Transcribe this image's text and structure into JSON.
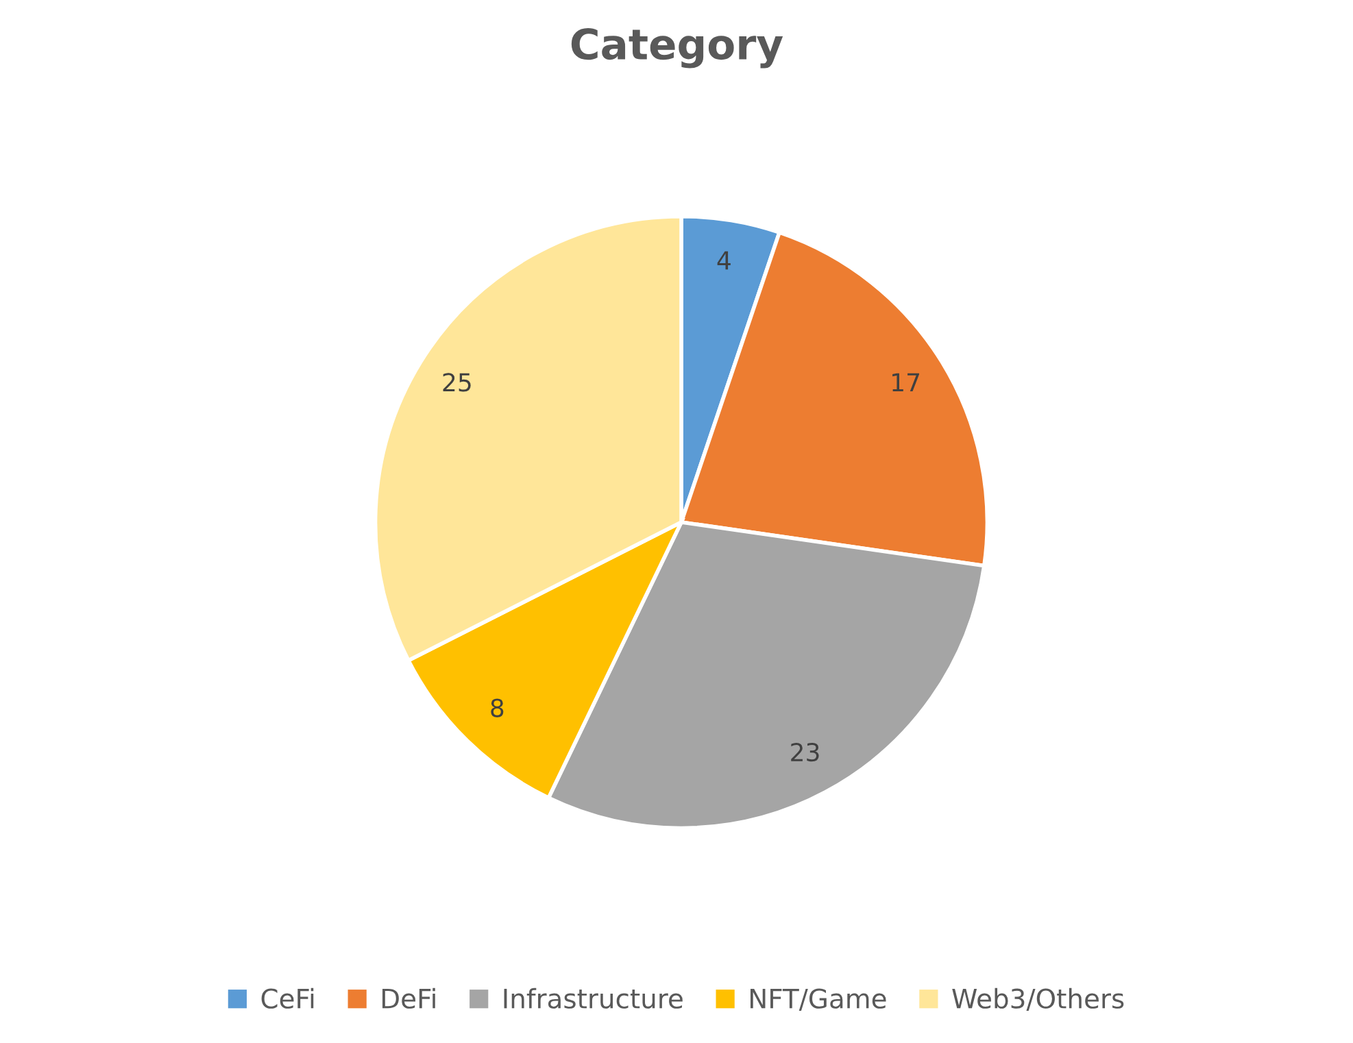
{
  "chart_data": {
    "type": "pie",
    "title": "Category",
    "categories": [
      "CeFi",
      "DeFi",
      "Infrastructure",
      "NFT/Game",
      "Web3/Others"
    ],
    "values": [
      4,
      17,
      23,
      8,
      25
    ],
    "colors": [
      "#5b9bd5",
      "#ed7d31",
      "#a5a5a5",
      "#ffc000",
      "#ffe699"
    ],
    "data_labels": true,
    "legend": "bottom"
  }
}
